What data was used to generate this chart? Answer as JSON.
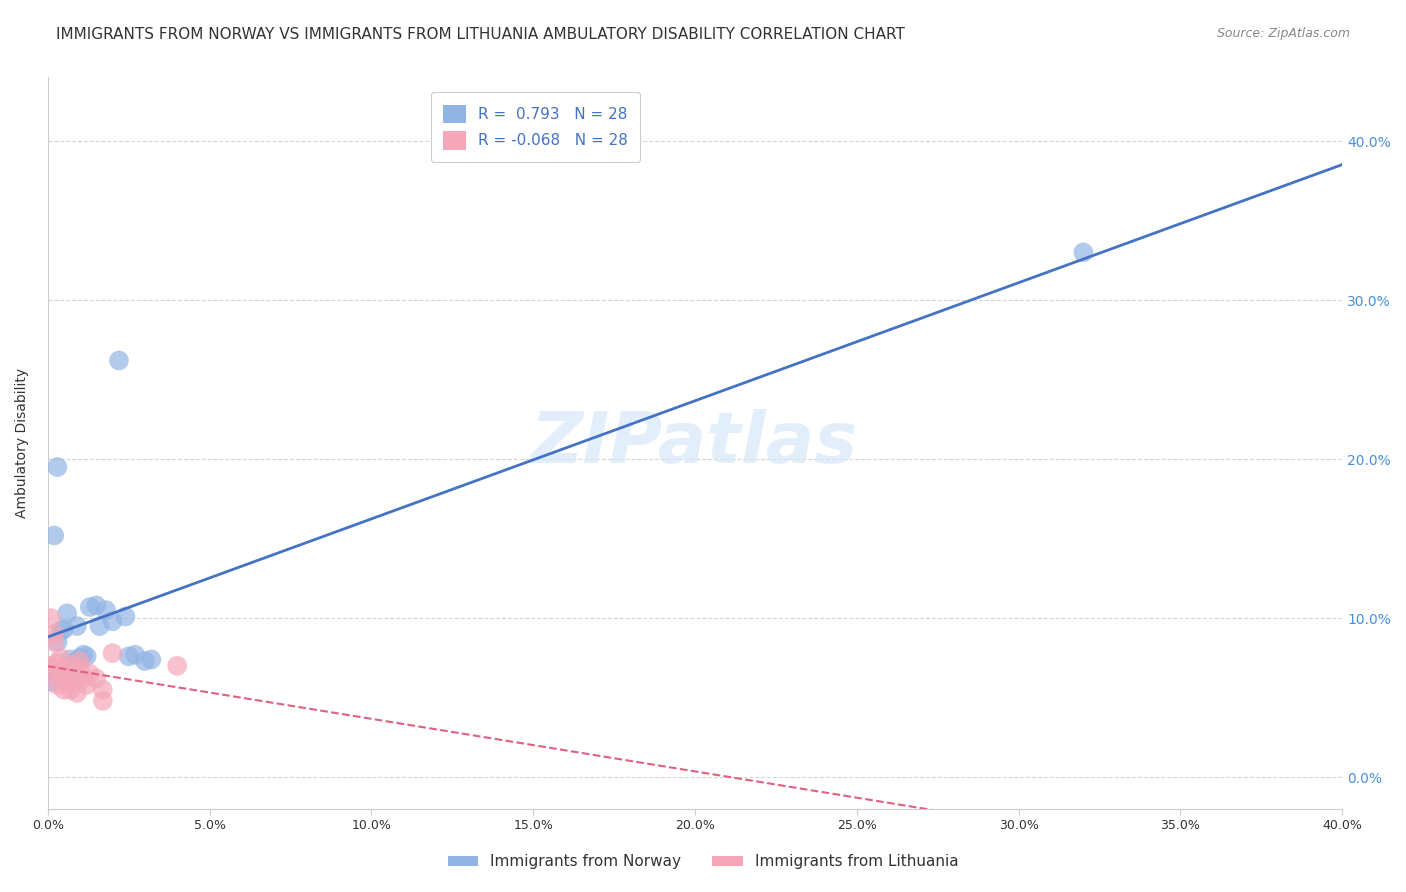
{
  "title": "IMMIGRANTS FROM NORWAY VS IMMIGRANTS FROM LITHUANIA AMBULATORY DISABILITY CORRELATION CHART",
  "source": "Source: ZipAtlas.com",
  "ylabel": "Ambulatory Disability",
  "xlim": [
    0.0,
    0.4
  ],
  "ylim": [
    -0.02,
    0.44
  ],
  "ytick_vals": [
    0.0,
    0.1,
    0.2,
    0.3,
    0.4
  ],
  "norway_color": "#92b4e3",
  "lithuania_color": "#f4a7b9",
  "norway_line_color": "#4472c4",
  "lithuania_line_color": "#e06080",
  "R_norway": 0.793,
  "R_lithuania": -0.068,
  "N_norway": 28,
  "N_lithuania": 28,
  "norway_points": [
    [
      0.002,
      0.152
    ],
    [
      0.003,
      0.085
    ],
    [
      0.004,
      0.092
    ],
    [
      0.005,
      0.093
    ],
    [
      0.005,
      0.065
    ],
    [
      0.006,
      0.103
    ],
    [
      0.007,
      0.074
    ],
    [
      0.008,
      0.068
    ],
    [
      0.008,
      0.072
    ],
    [
      0.009,
      0.095
    ],
    [
      0.01,
      0.075
    ],
    [
      0.011,
      0.077
    ],
    [
      0.012,
      0.076
    ],
    [
      0.013,
      0.107
    ],
    [
      0.015,
      0.108
    ],
    [
      0.016,
      0.095
    ],
    [
      0.018,
      0.105
    ],
    [
      0.02,
      0.098
    ],
    [
      0.022,
      0.262
    ],
    [
      0.024,
      0.101
    ],
    [
      0.025,
      0.076
    ],
    [
      0.027,
      0.077
    ],
    [
      0.03,
      0.073
    ],
    [
      0.032,
      0.074
    ],
    [
      0.003,
      0.195
    ],
    [
      0.001,
      0.068
    ],
    [
      0.001,
      0.06
    ],
    [
      0.32,
      0.33
    ]
  ],
  "lithuania_points": [
    [
      0.001,
      0.07
    ],
    [
      0.002,
      0.065
    ],
    [
      0.003,
      0.072
    ],
    [
      0.003,
      0.068
    ],
    [
      0.004,
      0.075
    ],
    [
      0.005,
      0.063
    ],
    [
      0.005,
      0.055
    ],
    [
      0.006,
      0.06
    ],
    [
      0.006,
      0.068
    ],
    [
      0.007,
      0.055
    ],
    [
      0.008,
      0.07
    ],
    [
      0.009,
      0.065
    ],
    [
      0.01,
      0.068
    ],
    [
      0.011,
      0.062
    ],
    [
      0.012,
      0.058
    ],
    [
      0.013,
      0.065
    ],
    [
      0.015,
      0.062
    ],
    [
      0.001,
      0.1
    ],
    [
      0.002,
      0.09
    ],
    [
      0.002,
      0.085
    ],
    [
      0.003,
      0.058
    ],
    [
      0.008,
      0.06
    ],
    [
      0.009,
      0.053
    ],
    [
      0.01,
      0.073
    ],
    [
      0.017,
      0.055
    ],
    [
      0.02,
      0.078
    ],
    [
      0.04,
      0.07
    ],
    [
      0.017,
      0.048
    ]
  ],
  "background_color": "#ffffff",
  "grid_color": "#cccccc",
  "watermark": "ZIPatlas",
  "legend_R_color": "#4472c4",
  "title_fontsize": 11,
  "axis_label_fontsize": 10,
  "tick_fontsize": 9,
  "right_tick_color": "#4a90d9"
}
